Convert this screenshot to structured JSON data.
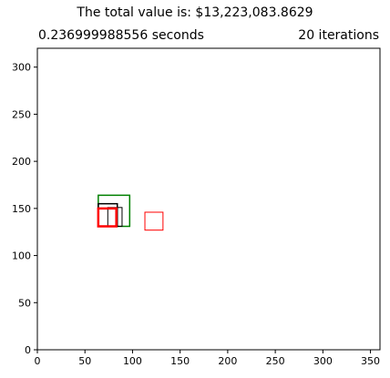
{
  "title": "The total value is: $13,223,083.8629",
  "subtitle_left": "0.236999988556 seconds",
  "subtitle_right": "20 iterations",
  "colors": {
    "green": "#008000",
    "black": "#000000",
    "red": "#ff0000"
  },
  "chart_data": {
    "type": "scatter",
    "xlim": [
      0,
      360
    ],
    "ylim": [
      0,
      320
    ],
    "x_ticks": [
      0,
      50,
      100,
      150,
      200,
      250,
      300,
      350
    ],
    "y_ticks": [
      0,
      50,
      100,
      150,
      200,
      250,
      300
    ],
    "grid": false,
    "rectangles": [
      {
        "x0": 64,
        "y0": 131,
        "x1": 97,
        "y1": 164,
        "color": "green",
        "weight": "medium"
      },
      {
        "x0": 64,
        "y0": 131,
        "x1": 84,
        "y1": 155,
        "color": "black",
        "weight": "medium"
      },
      {
        "x0": 74,
        "y0": 131,
        "x1": 89,
        "y1": 151,
        "color": "black",
        "weight": "thin"
      },
      {
        "x0": 64,
        "y0": 131,
        "x1": 83,
        "y1": 150,
        "color": "red",
        "weight": "thick"
      },
      {
        "x0": 113,
        "y0": 127,
        "x1": 132,
        "y1": 146,
        "color": "red",
        "weight": "thin"
      }
    ]
  }
}
